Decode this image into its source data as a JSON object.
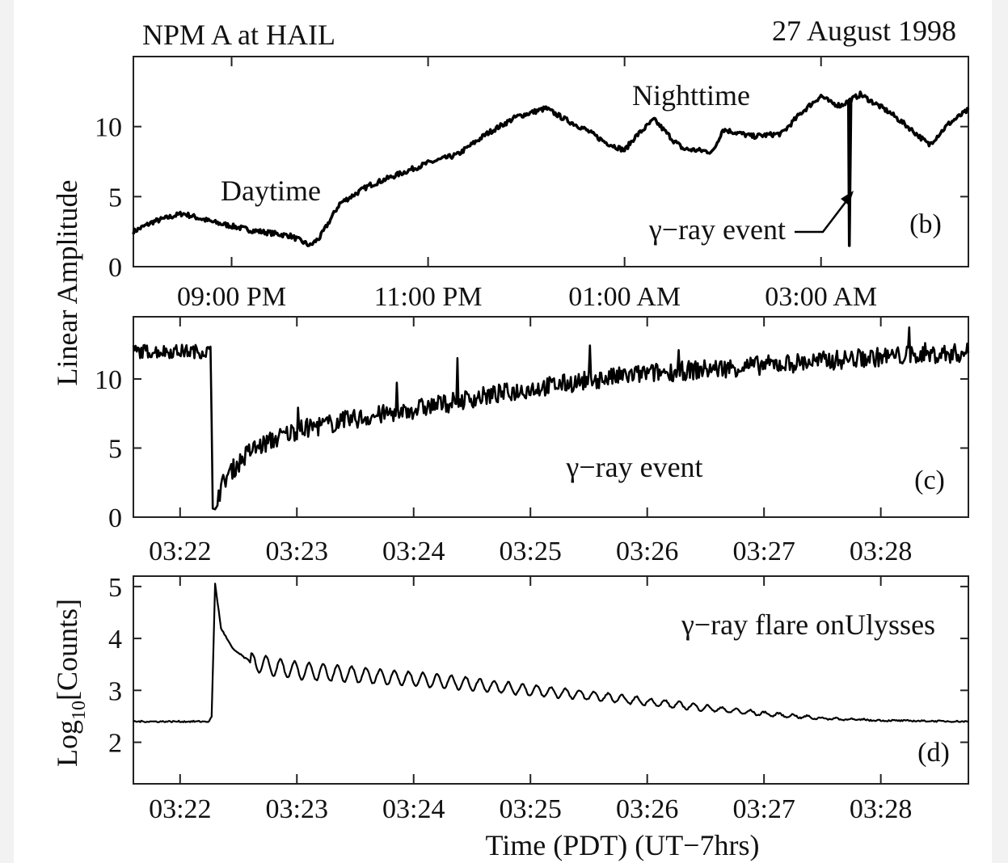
{
  "header": {
    "left": "NPM A at HAIL",
    "right": "27 August 1998"
  },
  "shared_ylabel": "Linear Amplitude",
  "shared_xlabel": "Time (PDT)  (UT−7hrs)",
  "chart_data": [
    {
      "type": "line",
      "panel": "(b)",
      "xticks": [
        "09:00 PM",
        "11:00 PM",
        "01:00 AM",
        "03:00 AM"
      ],
      "x_unit": "hours since 8:00 PM PDT",
      "xlim": [
        0,
        8.5
      ],
      "ylim": [
        0,
        15
      ],
      "yticks": [
        0,
        5,
        10
      ],
      "annotations": [
        "Daytime",
        "Nighttime",
        "γ−ray event"
      ],
      "series": [
        {
          "x": [
            0,
            0.2,
            0.5,
            0.8,
            1.2,
            1.6,
            1.8,
            1.9,
            2.1,
            2.4,
            2.7,
            3.0,
            3.3,
            3.6,
            3.9,
            4.2,
            4.4,
            4.6,
            4.8,
            5.0,
            5.1,
            5.3,
            5.5,
            5.6,
            5.9,
            6.0,
            6.3,
            6.6,
            6.8,
            7.0,
            7.1,
            7.2,
            7.4,
            7.7,
            7.9,
            8.1,
            8.3,
            8.5
          ],
          "y": [
            2.5,
            3.2,
            3.8,
            3.2,
            2.6,
            2.2,
            1.5,
            2.1,
            4.5,
            5.8,
            6.6,
            7.4,
            8.0,
            9.5,
            10.7,
            11.3,
            10.5,
            9.8,
            8.9,
            8.3,
            9.2,
            10.5,
            9.0,
            8.4,
            8.2,
            9.8,
            9.3,
            9.5,
            11.0,
            12.2,
            11.7,
            11.5,
            12.3,
            11.0,
            9.9,
            8.7,
            10.2,
            11.2
          ]
        }
      ],
      "dip": {
        "x": 7.28,
        "y": 1.5
      }
    },
    {
      "type": "line",
      "panel": "(c)",
      "xticks": [
        "03:22",
        "03:23",
        "03:24",
        "03:25",
        "03:26",
        "03:27",
        "03:28"
      ],
      "x_unit": "minutes after 03:21 PDT",
      "xlim": [
        0.6,
        7.75
      ],
      "ylim": [
        0,
        14.5
      ],
      "yticks": [
        0,
        5,
        10
      ],
      "annotations": [
        "γ−ray event"
      ],
      "series": [
        {
          "x": [
            0.6,
            1.2,
            1.26,
            1.28,
            1.32,
            1.4,
            1.6,
            1.8,
            2.0,
            2.5,
            3.0,
            3.5,
            4.0,
            4.5,
            5.0,
            5.5,
            6.0,
            6.5,
            7.0,
            7.75
          ],
          "y": [
            12.0,
            12.0,
            12.0,
            0.8,
            1.5,
            3.0,
            4.8,
            5.6,
            6.3,
            7.1,
            7.8,
            8.6,
            9.3,
            9.9,
            10.4,
            10.7,
            11.0,
            11.3,
            11.6,
            11.9
          ]
        }
      ]
    },
    {
      "type": "line",
      "panel": "(d)",
      "ylabel": "Log10[Counts]",
      "xticks": [
        "03:22",
        "03:23",
        "03:24",
        "03:25",
        "03:26",
        "03:27",
        "03:28"
      ],
      "x_unit": "minutes after 03:21 PDT",
      "xlim": [
        0.6,
        7.75
      ],
      "ylim": [
        1.2,
        5.2
      ],
      "yticks": [
        2,
        3,
        4,
        5
      ],
      "annotations": [
        "γ−ray flare onUlysses"
      ],
      "series": [
        {
          "x": [
            0.6,
            1.25,
            1.27,
            1.3,
            1.35,
            1.45,
            1.6,
            1.8,
            2.0,
            2.5,
            3.0,
            3.5,
            4.0,
            4.5,
            5.0,
            5.5,
            6.0,
            6.5,
            7.0,
            7.75
          ],
          "y": [
            2.4,
            2.4,
            2.5,
            5.05,
            4.2,
            3.8,
            3.55,
            3.45,
            3.38,
            3.3,
            3.22,
            3.12,
            3.0,
            2.9,
            2.78,
            2.66,
            2.55,
            2.46,
            2.42,
            2.4
          ]
        }
      ]
    }
  ]
}
